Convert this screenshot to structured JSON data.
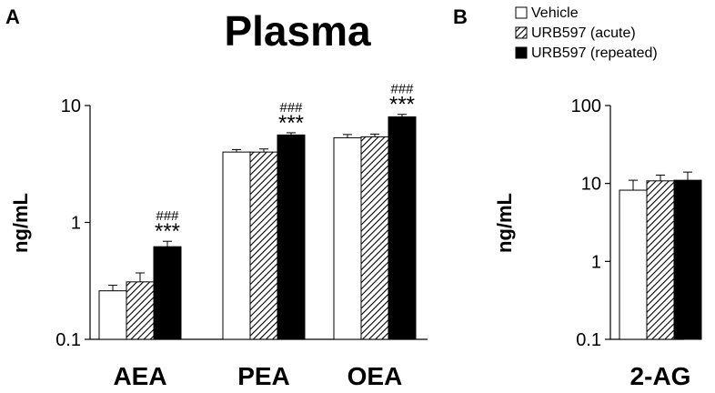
{
  "figure": {
    "title": "Plasma",
    "panel_labels": [
      "A",
      "B"
    ]
  },
  "legend": {
    "items": [
      {
        "label": "Vehicle",
        "fill": "white"
      },
      {
        "label": "URB597 (acute)",
        "fill": "hatched"
      },
      {
        "label": "URB597 (repeated)",
        "fill": "black"
      }
    ]
  },
  "chart_data": [
    {
      "type": "bar",
      "panel": "A",
      "title": "Plasma",
      "ylabel": "ng/mL",
      "yscale": "log",
      "ylim": [
        0.1,
        10
      ],
      "ytick_labels": [
        "0.1",
        "1",
        "10"
      ],
      "yticks": [
        0.1,
        1,
        10
      ],
      "categories": [
        "AEA",
        "PEA",
        "OEA"
      ],
      "series": [
        {
          "name": "Vehicle",
          "values": [
            0.26,
            4.0,
            5.3
          ],
          "errors": [
            0.03,
            0.2,
            0.35
          ]
        },
        {
          "name": "URB597 (acute)",
          "values": [
            0.31,
            4.0,
            5.4
          ],
          "errors": [
            0.06,
            0.25,
            0.3
          ]
        },
        {
          "name": "URB597 (repeated)",
          "values": [
            0.62,
            5.6,
            8.0
          ],
          "errors": [
            0.07,
            0.25,
            0.4
          ]
        }
      ],
      "annotations": [
        {
          "category": "AEA",
          "series": "URB597 (repeated)",
          "stars": "***",
          "hashes": "###"
        },
        {
          "category": "PEA",
          "series": "URB597 (repeated)",
          "stars": "***",
          "hashes": "###"
        },
        {
          "category": "OEA",
          "series": "URB597 (repeated)",
          "stars": "***",
          "hashes": "###"
        }
      ]
    },
    {
      "type": "bar",
      "panel": "B",
      "ylabel": "ng/mL",
      "yscale": "log",
      "ylim": [
        0.1,
        100
      ],
      "ytick_labels": [
        "0.1",
        "1",
        "10",
        "100"
      ],
      "yticks": [
        0.1,
        1,
        10,
        100
      ],
      "categories": [
        "2-AG"
      ],
      "series": [
        {
          "name": "Vehicle",
          "values": [
            8.2
          ],
          "errors": [
            2.8
          ]
        },
        {
          "name": "URB597 (acute)",
          "values": [
            10.8
          ],
          "errors": [
            2.0
          ]
        },
        {
          "name": "URB597 (repeated)",
          "values": [
            11.0
          ],
          "errors": [
            3.0
          ]
        }
      ]
    }
  ]
}
